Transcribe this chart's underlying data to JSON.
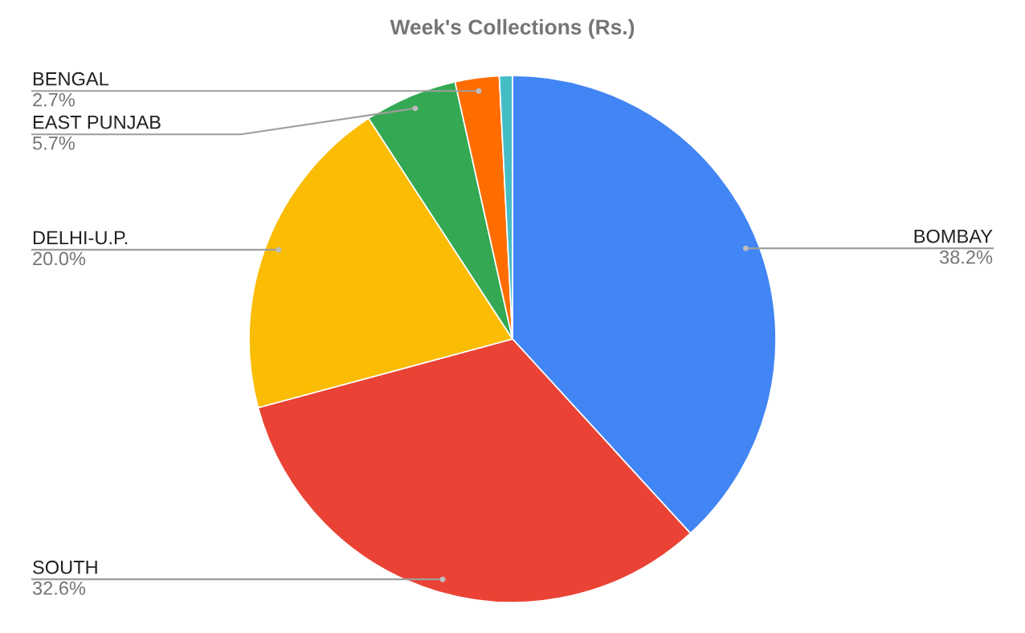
{
  "chart_data": {
    "type": "pie",
    "title": "Week's Collections (Rs.)",
    "categories": [
      "BOMBAY",
      "SOUTH",
      "DELHI-U.P.",
      "EAST PUNJAB",
      "BENGAL",
      null
    ],
    "values": [
      38.2,
      32.6,
      20.0,
      5.7,
      2.7,
      0.8
    ],
    "colors": [
      "#4285f4",
      "#ea4335",
      "#fbbc04",
      "#34a853",
      "#ff6d01",
      "#46bdc6"
    ],
    "value_labels": [
      "38.2%",
      "32.6%",
      "20.0%",
      "5.7%",
      "2.7%",
      null
    ]
  }
}
